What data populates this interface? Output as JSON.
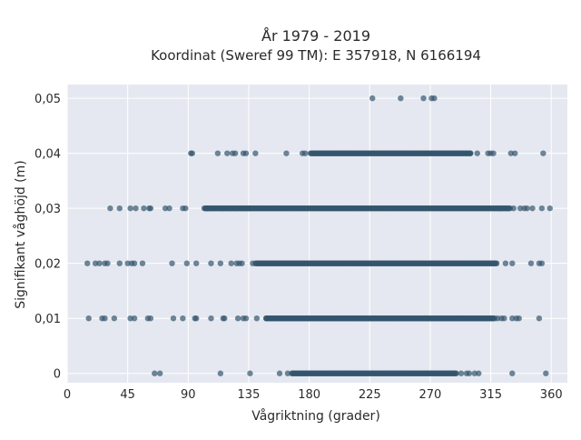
{
  "chart_data": {
    "type": "scatter",
    "title": "År 1979 - 2019",
    "subtitle": "Koordinat (Sweref 99 TM): E 357918, N 6166194",
    "xlabel": "Vågriktning (grader)",
    "ylabel": "Signifikant våghöjd (m)",
    "xlim": [
      0,
      372
    ],
    "ylim": [
      -0.0017,
      0.0525
    ],
    "x_ticks": [
      0,
      45,
      90,
      135,
      180,
      225,
      270,
      315,
      360
    ],
    "x_tick_labels": [
      "0",
      "45",
      "90",
      "135",
      "180",
      "225",
      "270",
      "315",
      "360"
    ],
    "y_ticks": [
      0,
      0.01,
      0.02,
      0.03,
      0.04,
      0.05
    ],
    "y_tick_labels": [
      "0",
      "0,01",
      "0,02",
      "0,03",
      "0,04",
      "0,05"
    ],
    "grid": true,
    "marker_color": "#34566e",
    "background_color": "#e5e8f0",
    "series": [
      {
        "level": 0,
        "dense_range": [
          167,
          290
        ],
        "scattered_x": [
          65,
          69,
          114,
          136,
          158,
          164,
          293,
          297,
          299,
          303,
          306,
          331,
          356
        ]
      },
      {
        "level": 0.01,
        "dense_range": [
          148,
          318
        ],
        "scattered_x": [
          16,
          26,
          28,
          35,
          47,
          50,
          60,
          62,
          79,
          86,
          95,
          96,
          107,
          116,
          117,
          127,
          131,
          133,
          141,
          148,
          320,
          323,
          325,
          331,
          334,
          336,
          351
        ]
      },
      {
        "level": 0.02,
        "dense_range": [
          140,
          320
        ],
        "scattered_x": [
          15,
          21,
          24,
          28,
          30,
          39,
          45,
          48,
          50,
          56,
          78,
          89,
          96,
          107,
          114,
          122,
          126,
          128,
          130,
          138,
          317,
          326,
          331,
          345,
          351,
          353
        ]
      },
      {
        "level": 0.03,
        "dense_range": [
          102,
          330
        ],
        "scattered_x": [
          32,
          39,
          47,
          51,
          57,
          61,
          62,
          73,
          76,
          86,
          88,
          104,
          107,
          116,
          121,
          125,
          130,
          134,
          136,
          322,
          332,
          337,
          340,
          342,
          346,
          353,
          359
        ]
      },
      {
        "level": 0.04,
        "dense_range": [
          181,
          300
        ],
        "scattered_x": [
          92,
          93,
          112,
          119,
          123,
          125,
          131,
          133,
          140,
          163,
          175,
          177,
          300,
          305,
          313,
          315,
          317,
          330,
          333,
          354
        ]
      },
      {
        "level": 0.05,
        "dense_range": [
          270,
          270
        ],
        "scattered_x": [
          227,
          248,
          265,
          271,
          273
        ]
      }
    ]
  }
}
